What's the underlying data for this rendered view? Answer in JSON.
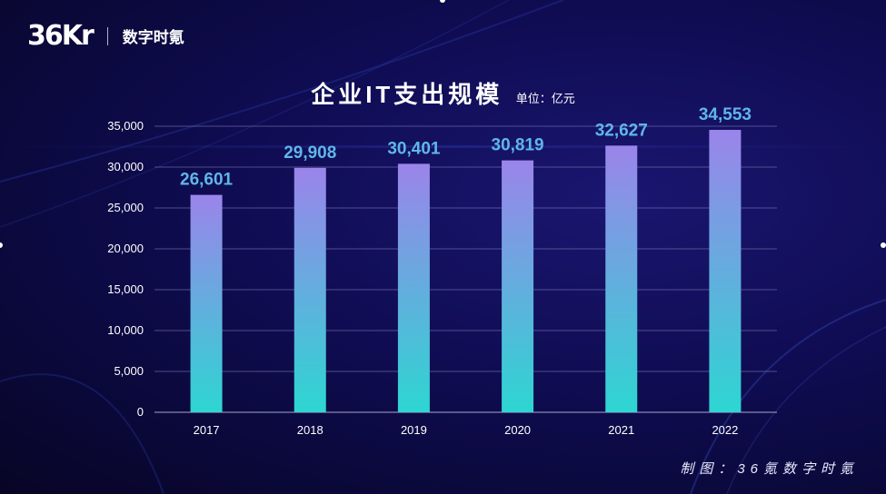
{
  "logo": {
    "brand": "36Kr",
    "sub_brand": "数字时氪"
  },
  "chart_data": {
    "type": "bar",
    "title": "企业IT支出规模",
    "unit": "单位：亿元",
    "categories": [
      "2017",
      "2018",
      "2019",
      "2020",
      "2021",
      "2022"
    ],
    "values": [
      26601,
      29908,
      30401,
      30819,
      32627,
      34553
    ],
    "value_labels": [
      "26,601",
      "29,908",
      "30,401",
      "30,819",
      "32,627",
      "34,553"
    ],
    "y_ticks": [
      "0",
      "5,000",
      "10,000",
      "15,000",
      "20,000",
      "25,000",
      "30,000",
      "35,000"
    ],
    "ylim": [
      0,
      35000
    ],
    "xlabel": "",
    "ylabel": "",
    "grid": true,
    "colors": {
      "bar_top": "#9b84ea",
      "bar_bottom": "#2dd6d2",
      "label": "#5fb6e9",
      "grid": "#6b6aa8"
    }
  },
  "footer": "制图：36氪数字时氪"
}
